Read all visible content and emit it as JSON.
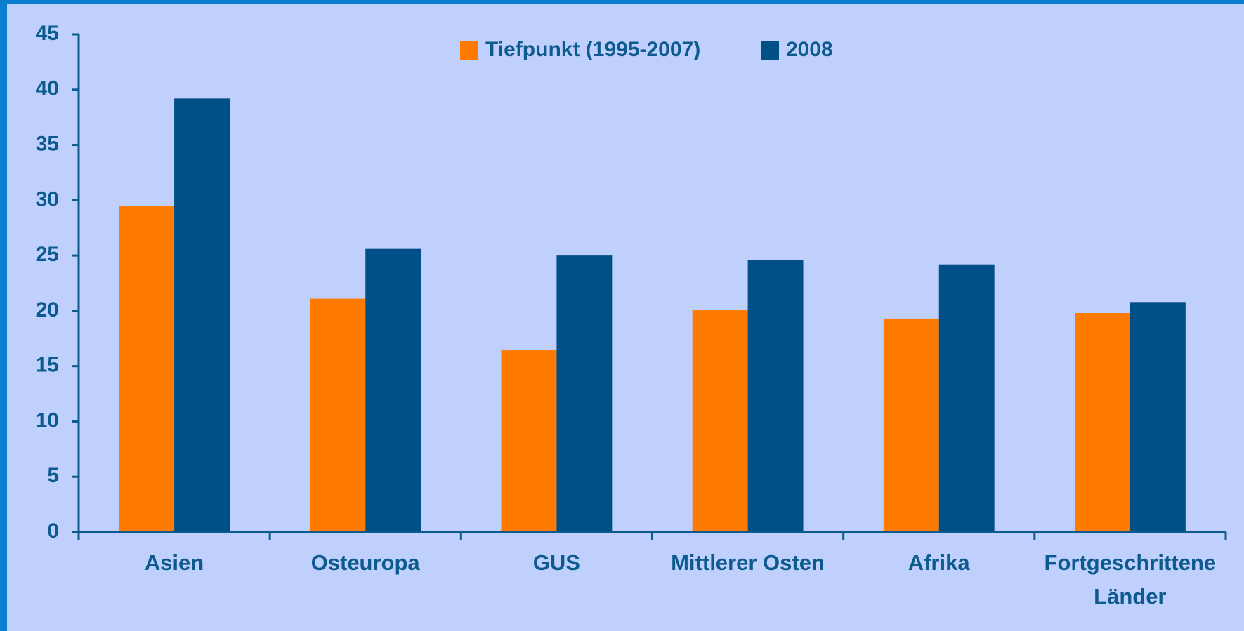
{
  "chart_data": {
    "type": "bar",
    "categories": [
      "Asien",
      "Osteuropa",
      "GUS",
      "Mittlerer Osten",
      "Afrika",
      "Fortgeschrittene Länder"
    ],
    "series": [
      {
        "name": "Tiefpunkt (1995-2007)",
        "color": "#ff7a00",
        "values": [
          29.5,
          21.1,
          16.5,
          20.1,
          19.3,
          19.8
        ]
      },
      {
        "name": "2008",
        "color": "#004f86",
        "values": [
          39.2,
          25.6,
          25.0,
          24.6,
          24.2,
          20.8
        ]
      }
    ],
    "ylim": [
      0,
      45
    ],
    "yticks": [
      0,
      5,
      10,
      15,
      20,
      25,
      30,
      35,
      40,
      45
    ],
    "legend": "top"
  }
}
